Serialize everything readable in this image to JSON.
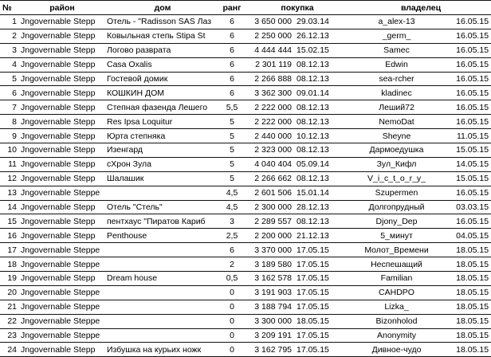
{
  "table": {
    "headers": {
      "num": "№",
      "district": "район",
      "house": "дом",
      "rank": "ранг",
      "purchase": "покупка",
      "owner": "владелец"
    },
    "rows": [
      {
        "num": "1",
        "district": "Jngovernable Stepp",
        "house": "Отель - \"Radisson SAS Лаз",
        "rank": "6",
        "price": "3 650 000",
        "date": "29.03.14",
        "owner": "a_alex-13",
        "owner_date": "16.05.15"
      },
      {
        "num": "2",
        "district": "Jngovernable Stepp",
        "house": "Ковыльная степь Stipa St",
        "rank": "6",
        "price": "2 250 000",
        "date": "26.12.13",
        "owner": "_germ_",
        "owner_date": "16.05.15"
      },
      {
        "num": "3",
        "district": "Jngovernable Stepp",
        "house": "Логово разврата",
        "rank": "6",
        "price": "4 444 444",
        "date": "15.02.15",
        "owner": "Samec",
        "owner_date": "16.05.15"
      },
      {
        "num": "4",
        "district": "Jngovernable Stepp",
        "house": "Casa Oxalis",
        "rank": "6",
        "price": "2 301 119",
        "date": "08.12.13",
        "owner": "Edwin",
        "owner_date": "16.05.15"
      },
      {
        "num": "5",
        "district": "Jngovernable Stepp",
        "house": "Гостевой домик",
        "rank": "6",
        "price": "2 266 888",
        "date": "08.12.13",
        "owner": "sea-rcher",
        "owner_date": "16.05.15"
      },
      {
        "num": "6",
        "district": "Jngovernable Stepp",
        "house": "КОШКИН ДОМ",
        "rank": "6",
        "price": "3 362 300",
        "date": "09.01.14",
        "owner": "kladinec",
        "owner_date": "16.05.15"
      },
      {
        "num": "7",
        "district": "Jngovernable Stepp",
        "house": "Степная фазенда Лешего",
        "rank": "5,5",
        "price": "2 222 000",
        "date": "08.12.13",
        "owner": "Леший72",
        "owner_date": "16.05.15"
      },
      {
        "num": "8",
        "district": "Jngovernable Stepp",
        "house": "Res Ipsa Loquitur",
        "rank": "5",
        "price": "2 222 000",
        "date": "08.12.13",
        "owner": "NemoDat",
        "owner_date": "16.05.15"
      },
      {
        "num": "9",
        "district": "Jngovernable Stepp",
        "house": "Юрта степняка",
        "rank": "5",
        "price": "2 440 000",
        "date": "10.12.13",
        "owner": "Sheyne",
        "owner_date": "11.05.15"
      },
      {
        "num": "10",
        "district": "Jngovernable Stepp",
        "house": "Изенгард",
        "rank": "5",
        "price": "2 323 000",
        "date": "08.12.13",
        "owner": "Дармоедушка",
        "owner_date": "15.05.15"
      },
      {
        "num": "11",
        "district": "Jngovernable Stepp",
        "house": "сХрон Зула",
        "rank": "5",
        "price": "4 040 404",
        "date": "05.09.14",
        "owner": "Зул_Кифл",
        "owner_date": "14.05.15"
      },
      {
        "num": "12",
        "district": "Jngovernable Stepp",
        "house": "Шалашик",
        "rank": "5",
        "price": "2 266 662",
        "date": "08.12.13",
        "owner": "V_i_c_t_o_r_y_",
        "owner_date": "15.05.15"
      },
      {
        "num": "13",
        "district": "Jngovernable Steppe",
        "house": "",
        "rank": "4,5",
        "price": "2 601 506",
        "date": "15.01.14",
        "owner": "Szupermen",
        "owner_date": "16.05.15"
      },
      {
        "num": "14",
        "district": "Jngovernable Stepp",
        "house": "Отель \"Стель\"",
        "rank": "4,5",
        "price": "2 300 000",
        "date": "28.12.13",
        "owner": "Долгопрудный",
        "owner_date": "03.03.15"
      },
      {
        "num": "15",
        "district": "Jngovernable Stepp",
        "house": "пентхаус \"Пиратов Кариб",
        "rank": "3",
        "price": "2 289 557",
        "date": "08.12.13",
        "owner": "Djony_Dep",
        "owner_date": "16.05.15"
      },
      {
        "num": "16",
        "district": "Jngovernable Stepp",
        "house": "Penthouse",
        "rank": "2,5",
        "price": "2 200 000",
        "date": "21.12.13",
        "owner": "5_минут",
        "owner_date": "04.05.15"
      },
      {
        "num": "17",
        "district": "Jngovernable Steppe",
        "house": "",
        "rank": "6",
        "price": "3 370 000",
        "date": "17.05.15",
        "owner": "Молот_Времени",
        "owner_date": "18.05.15"
      },
      {
        "num": "18",
        "district": "Jngovernable Steppe",
        "house": "",
        "rank": "2",
        "price": "3 189 580",
        "date": "17.05.15",
        "owner": "Неспешащий",
        "owner_date": "18.05.15"
      },
      {
        "num": "19",
        "district": "Jngovernable Stepp",
        "house": "Dream house",
        "rank": "0,5",
        "price": "3 162 578",
        "date": "17.05.15",
        "owner": "Familian",
        "owner_date": "18.05.15"
      },
      {
        "num": "20",
        "district": "Jngovernable Steppe",
        "house": "",
        "rank": "0",
        "price": "3 191 903",
        "date": "17.05.15",
        "owner": "CAHDPO",
        "owner_date": "18.05.15"
      },
      {
        "num": "21",
        "district": "Jngovernable Steppe",
        "house": "",
        "rank": "0",
        "price": "3 188 794",
        "date": "17.05.15",
        "owner": "Lizka_",
        "owner_date": "18.05.15"
      },
      {
        "num": "22",
        "district": "Jngovernable Steppe",
        "house": "",
        "rank": "0",
        "price": "3 300 000",
        "date": "18.05.15",
        "owner": "Bizonholod",
        "owner_date": "18.05.15"
      },
      {
        "num": "23",
        "district": "Jngovernable Steppe",
        "house": "",
        "rank": "0",
        "price": "3 209 191",
        "date": "17.05.15",
        "owner": "Anonymity",
        "owner_date": "18.05.15"
      },
      {
        "num": "24",
        "district": "Jngovernable Stepp",
        "house": "Избушка на курьих ножк",
        "rank": "0",
        "price": "3 162 795",
        "date": "17.05.15",
        "owner": "Дивное-чудо",
        "owner_date": "18.05.15"
      }
    ]
  }
}
